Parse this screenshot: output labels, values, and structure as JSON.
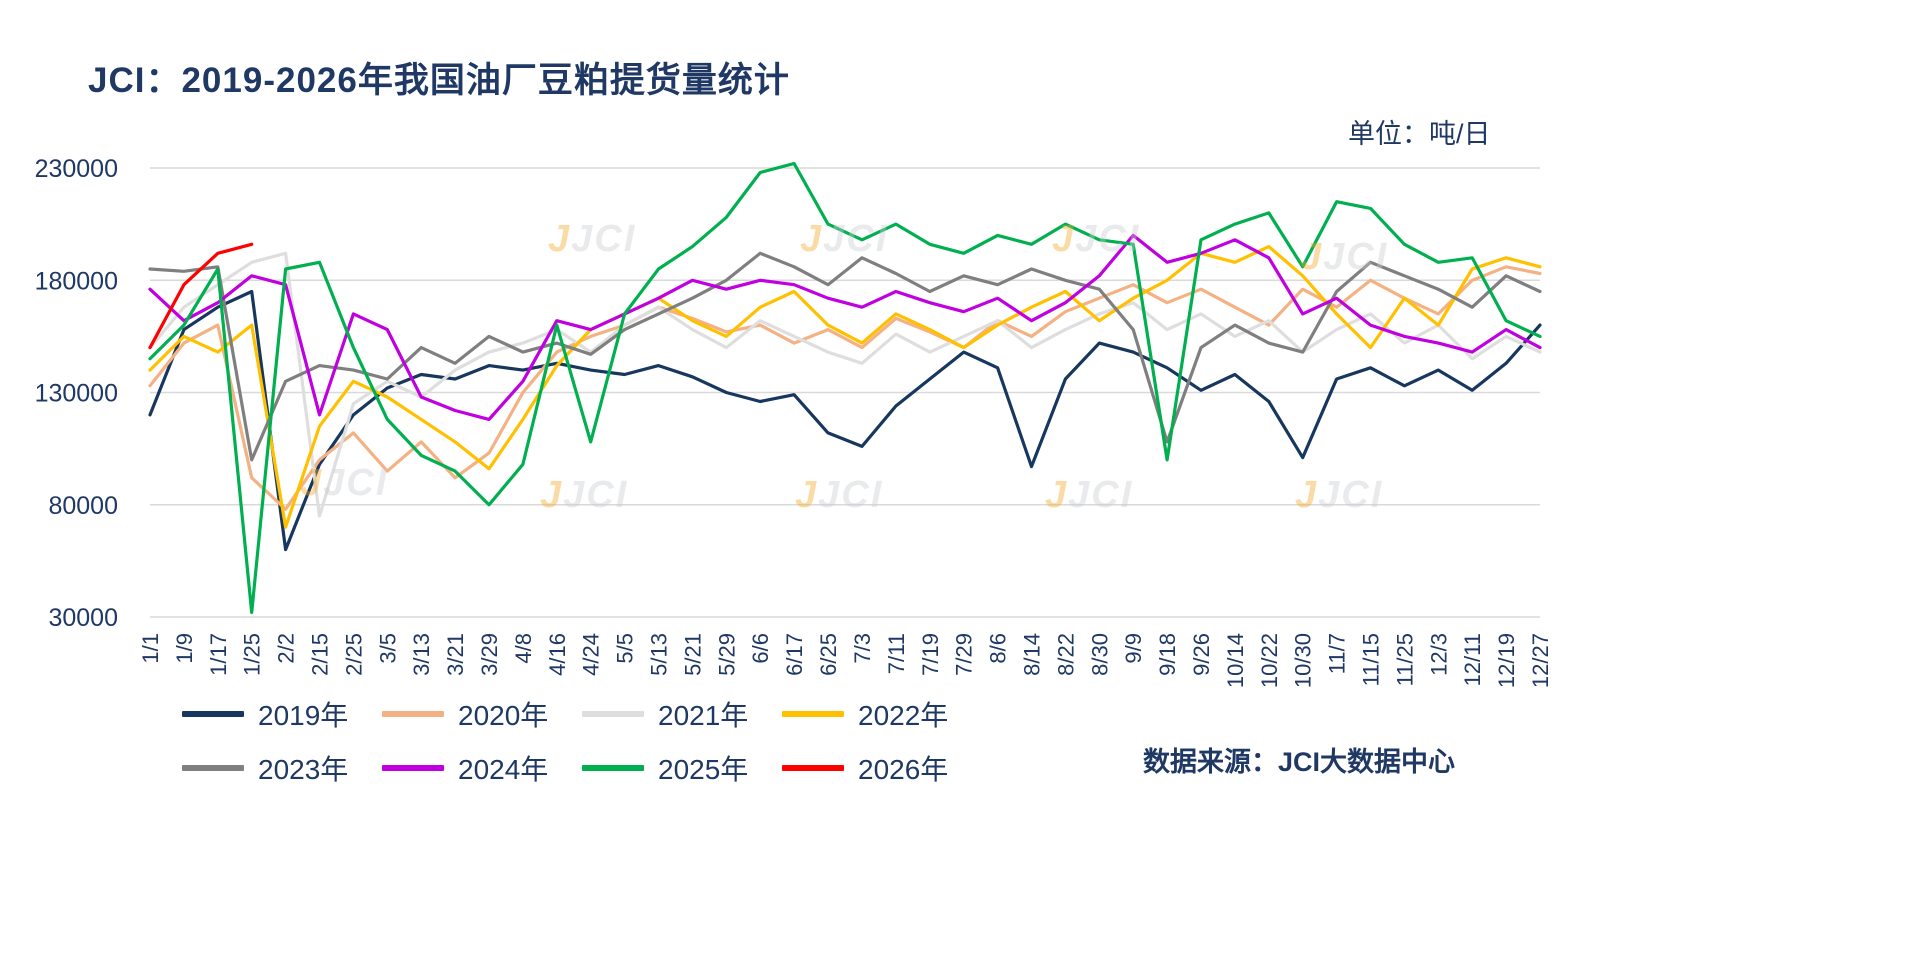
{
  "title": "JCI：2019-2026年我国油厂豆粕提货量统计",
  "unit_label": "单位：吨/日",
  "source_label": "数据来源：JCI大数据中心",
  "watermark": {
    "j": "J",
    "jci": "JCI"
  },
  "chart_data": {
    "type": "line",
    "title": "JCI：2019-2026年我国油厂豆粕提货量统计",
    "xlabel": "",
    "ylabel": "吨/日",
    "ylim": [
      30000,
      230000
    ],
    "y_ticks": [
      30000,
      80000,
      130000,
      180000,
      230000
    ],
    "grid": "horizontal",
    "legend_position": "bottom",
    "categories": [
      "1/1",
      "1/9",
      "1/17",
      "1/25",
      "2/2",
      "2/15",
      "2/25",
      "3/5",
      "3/13",
      "3/21",
      "3/29",
      "4/8",
      "4/16",
      "4/24",
      "5/5",
      "5/13",
      "5/21",
      "5/29",
      "6/6",
      "6/17",
      "6/25",
      "7/3",
      "7/11",
      "7/19",
      "7/29",
      "8/6",
      "8/14",
      "8/22",
      "8/30",
      "9/9",
      "9/18",
      "9/26",
      "10/14",
      "10/22",
      "10/30",
      "11/7",
      "11/15",
      "11/25",
      "12/3",
      "12/11",
      "12/19",
      "12/27"
    ],
    "series": [
      {
        "name": "2019年",
        "color": "#17375E",
        "values": [
          120000,
          158000,
          168000,
          175000,
          60000,
          98000,
          120000,
          132000,
          138000,
          136000,
          142000,
          140000,
          143000,
          140000,
          138000,
          142000,
          137000,
          130000,
          126000,
          129000,
          112000,
          106000,
          124000,
          136000,
          148000,
          141000,
          97000,
          136000,
          152000,
          148000,
          141000,
          131000,
          138000,
          126000,
          101000,
          136000,
          141000,
          133000,
          140000,
          131000,
          143000,
          160000
        ]
      },
      {
        "name": "2020年",
        "color": "#F4B183",
        "values": [
          133000,
          152000,
          160000,
          92000,
          78000,
          100000,
          112000,
          95000,
          108000,
          92000,
          103000,
          130000,
          148000,
          155000,
          160000,
          168000,
          163000,
          157000,
          160000,
          152000,
          158000,
          150000,
          163000,
          157000,
          150000,
          162000,
          155000,
          166000,
          172000,
          178000,
          170000,
          176000,
          168000,
          160000,
          176000,
          168000,
          180000,
          172000,
          165000,
          180000,
          186000,
          183000
        ]
      },
      {
        "name": "2021年",
        "color": "#DEDEDE",
        "values": [
          150000,
          168000,
          178000,
          188000,
          192000,
          75000,
          125000,
          135000,
          128000,
          140000,
          148000,
          152000,
          158000,
          148000,
          160000,
          168000,
          158000,
          150000,
          162000,
          155000,
          148000,
          143000,
          156000,
          148000,
          155000,
          162000,
          150000,
          158000,
          165000,
          170000,
          158000,
          165000,
          155000,
          162000,
          148000,
          158000,
          165000,
          152000,
          160000,
          145000,
          155000,
          148000
        ]
      },
      {
        "name": "2022年",
        "color": "#FFC000",
        "values": [
          140000,
          155000,
          148000,
          160000,
          70000,
          115000,
          135000,
          128000,
          118000,
          108000,
          96000,
          118000,
          142000,
          158000,
          165000,
          172000,
          162000,
          155000,
          168000,
          175000,
          160000,
          152000,
          165000,
          158000,
          150000,
          160000,
          168000,
          175000,
          162000,
          172000,
          180000,
          192000,
          188000,
          195000,
          182000,
          165000,
          150000,
          172000,
          160000,
          185000,
          190000,
          186000
        ]
      },
      {
        "name": "2023年",
        "color": "#7F7F7F",
        "values": [
          185000,
          184000,
          186000,
          100000,
          135000,
          142000,
          140000,
          136000,
          150000,
          143000,
          155000,
          148000,
          152000,
          147000,
          158000,
          165000,
          172000,
          180000,
          192000,
          186000,
          178000,
          190000,
          183000,
          175000,
          182000,
          178000,
          185000,
          180000,
          176000,
          158000,
          108000,
          150000,
          160000,
          152000,
          148000,
          175000,
          188000,
          182000,
          176000,
          168000,
          182000,
          175000
        ]
      },
      {
        "name": "2024年",
        "color": "#C000E0",
        "values": [
          176000,
          162000,
          170000,
          182000,
          178000,
          120000,
          165000,
          158000,
          128000,
          122000,
          118000,
          135000,
          162000,
          158000,
          165000,
          172000,
          180000,
          176000,
          180000,
          178000,
          172000,
          168000,
          175000,
          170000,
          166000,
          172000,
          162000,
          170000,
          182000,
          200000,
          188000,
          192000,
          198000,
          190000,
          165000,
          172000,
          160000,
          155000,
          152000,
          148000,
          158000,
          150000
        ]
      },
      {
        "name": "2025年",
        "color": "#00B050",
        "values": [
          145000,
          160000,
          185000,
          32000,
          185000,
          188000,
          150000,
          118000,
          102000,
          95000,
          80000,
          98000,
          160000,
          108000,
          165000,
          185000,
          195000,
          208000,
          228000,
          232000,
          205000,
          198000,
          205000,
          196000,
          192000,
          200000,
          196000,
          205000,
          198000,
          196000,
          100000,
          198000,
          205000,
          210000,
          186000,
          215000,
          212000,
          196000,
          188000,
          190000,
          162000,
          155000
        ]
      },
      {
        "name": "2026年",
        "color": "#FF0000",
        "values": [
          150000,
          178000,
          192000,
          196000,
          null,
          null,
          null,
          null,
          null,
          null,
          null,
          null,
          null,
          null,
          null,
          null,
          null,
          null,
          null,
          null,
          null,
          null,
          null,
          null,
          null,
          null,
          null,
          null,
          null,
          null,
          null,
          null,
          null,
          null,
          null,
          null,
          null,
          null,
          null,
          null,
          null,
          null
        ]
      }
    ]
  }
}
